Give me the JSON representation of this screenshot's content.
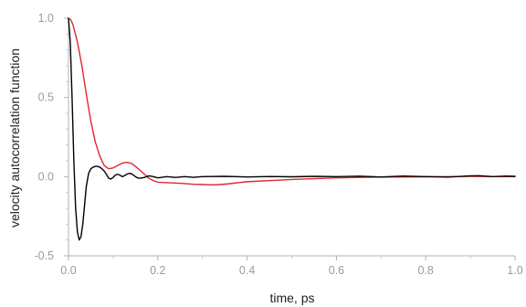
{
  "chart_data": {
    "type": "line",
    "xlabel": "time, ps",
    "ylabel": "velocity autocorrelation function",
    "xlim": [
      0.0,
      1.0
    ],
    "ylim": [
      -0.5,
      1.0
    ],
    "x_ticks": [
      "0.0",
      "0.2",
      "0.4",
      "0.6",
      "0.8",
      "1.0"
    ],
    "y_ticks": [
      "-0.5",
      "0.0",
      "0.5",
      "1.0"
    ],
    "grid": false,
    "series": [
      {
        "color": "#e0262e",
        "x": [
          0.0,
          0.005,
          0.01,
          0.02,
          0.03,
          0.04,
          0.05,
          0.06,
          0.07,
          0.08,
          0.09,
          0.1,
          0.11,
          0.12,
          0.13,
          0.14,
          0.15,
          0.16,
          0.17,
          0.18,
          0.19,
          0.2,
          0.22,
          0.25,
          0.28,
          0.3,
          0.32,
          0.34,
          0.36,
          0.38,
          0.4,
          0.45,
          0.5,
          0.55,
          0.6,
          0.65,
          0.7,
          0.75,
          0.8,
          0.85,
          0.9,
          0.95,
          1.0
        ],
        "y": [
          1.0,
          0.99,
          0.96,
          0.85,
          0.7,
          0.52,
          0.35,
          0.22,
          0.13,
          0.07,
          0.05,
          0.055,
          0.07,
          0.085,
          0.09,
          0.085,
          0.065,
          0.04,
          0.015,
          -0.01,
          -0.025,
          -0.035,
          -0.038,
          -0.042,
          -0.048,
          -0.05,
          -0.052,
          -0.05,
          -0.045,
          -0.038,
          -0.032,
          -0.025,
          -0.018,
          -0.013,
          -0.008,
          -0.005,
          -0.003,
          -0.002,
          -0.001,
          0.0,
          0.002,
          0.001,
          0.0
        ]
      },
      {
        "color": "#000000",
        "x": [
          0.0,
          0.004,
          0.008,
          0.012,
          0.016,
          0.02,
          0.024,
          0.028,
          0.032,
          0.036,
          0.04,
          0.045,
          0.05,
          0.055,
          0.06,
          0.065,
          0.07,
          0.075,
          0.08,
          0.085,
          0.09,
          0.095,
          0.1,
          0.105,
          0.11,
          0.115,
          0.12,
          0.125,
          0.13,
          0.135,
          0.14,
          0.145,
          0.15,
          0.155,
          0.16,
          0.17,
          0.18,
          0.19,
          0.2,
          0.22,
          0.24,
          0.26,
          0.28,
          0.3,
          0.35,
          0.4,
          0.45,
          0.5,
          0.55,
          0.6,
          0.65,
          0.7,
          0.75,
          0.8,
          0.85,
          0.9,
          0.92,
          0.95,
          0.98,
          1.0
        ],
        "y": [
          1.0,
          0.85,
          0.5,
          0.1,
          -0.2,
          -0.35,
          -0.4,
          -0.38,
          -0.3,
          -0.18,
          -0.06,
          0.02,
          0.05,
          0.06,
          0.065,
          0.065,
          0.06,
          0.05,
          0.035,
          0.015,
          -0.01,
          -0.015,
          -0.005,
          0.01,
          0.015,
          0.01,
          0.0,
          0.005,
          0.015,
          0.02,
          0.02,
          0.01,
          0.0,
          -0.008,
          -0.01,
          -0.005,
          0.005,
          0.0,
          -0.008,
          0.0,
          -0.005,
          0.0,
          -0.004,
          0.0,
          0.002,
          -0.002,
          0.001,
          -0.001,
          0.002,
          0.0,
          0.003,
          -0.002,
          0.004,
          0.0,
          -0.003,
          0.005,
          0.006,
          0.0,
          0.004,
          0.002
        ]
      }
    ]
  }
}
